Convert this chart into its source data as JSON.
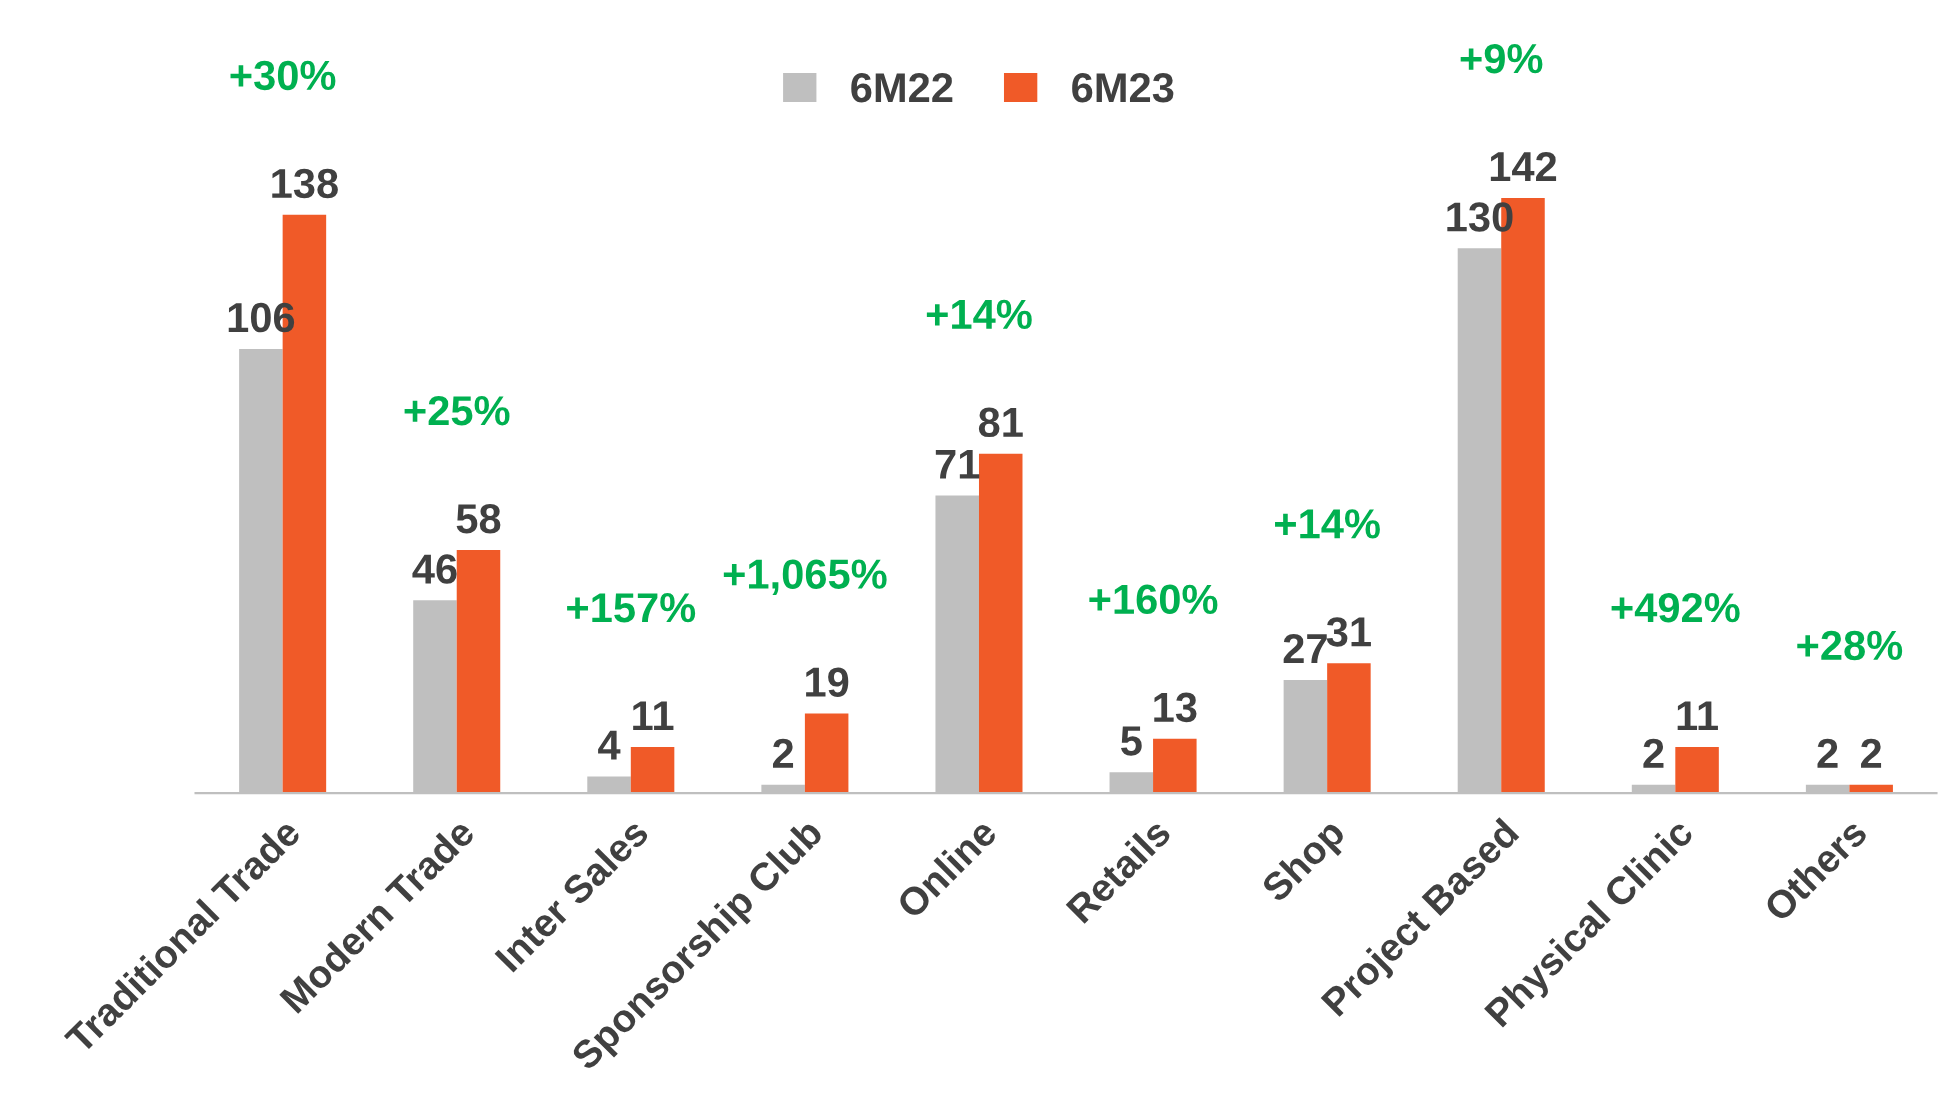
{
  "chart_data": {
    "type": "bar",
    "categories": [
      "Traditional Trade",
      "Modern Trade",
      "Inter Sales",
      "Sponsorship Club",
      "Online",
      "Retails",
      "Shop",
      "Project Based",
      "Physical Clinic",
      "Others"
    ],
    "series": [
      {
        "name": "6M22",
        "color": "#bfbfbf",
        "values": [
          106,
          46,
          4,
          2,
          71,
          5,
          27,
          130,
          2,
          2
        ]
      },
      {
        "name": "6M23",
        "color": "#f05a28",
        "values": [
          138,
          58,
          11,
          19,
          81,
          13,
          31,
          142,
          11,
          2
        ]
      }
    ],
    "annotations": [
      "+30%",
      "+25%",
      "+157%",
      "+1,065%",
      "+14%",
      "+160%",
      "+14%",
      "+9%",
      "+492%",
      "+28%"
    ],
    "data_labels": true,
    "legend": "top",
    "grid": false
  }
}
